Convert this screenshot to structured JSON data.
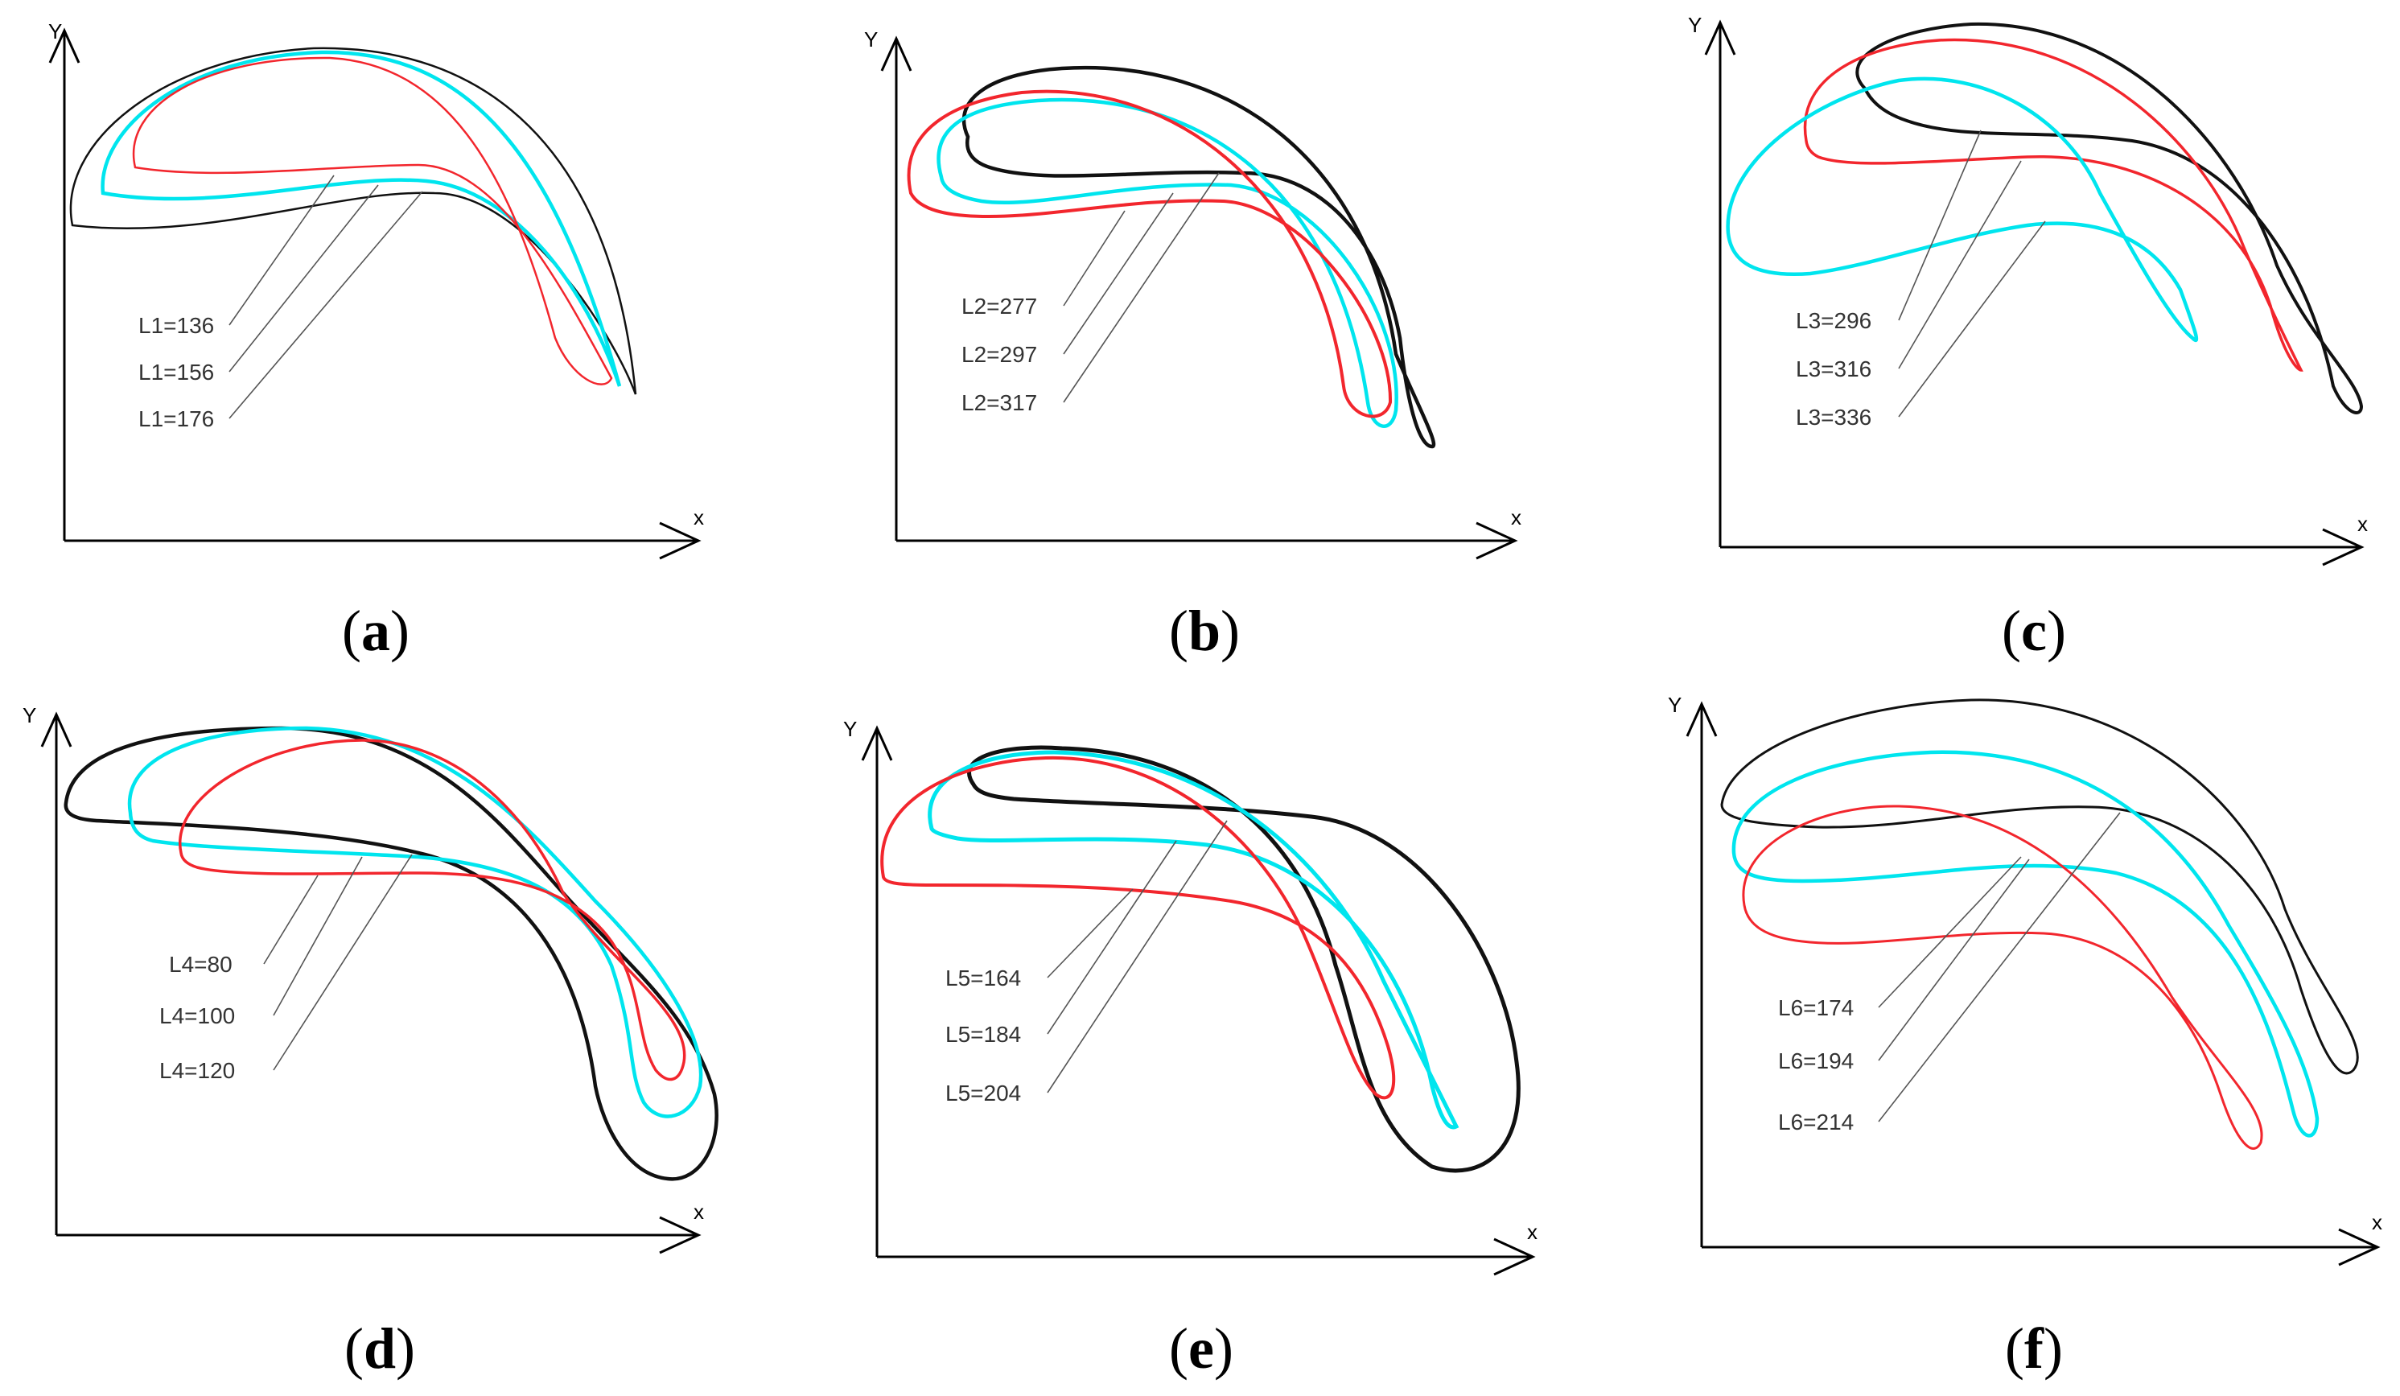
{
  "panels": [
    {
      "id": "a",
      "y_label": "Y",
      "x_label": "x",
      "caption": "a",
      "labels": [
        "L1=136",
        "L1=156",
        "L1=176"
      ]
    },
    {
      "id": "b",
      "y_label": "Y",
      "x_label": "x",
      "caption": "b",
      "labels": [
        "L2=277",
        "L2=297",
        "L2=317"
      ]
    },
    {
      "id": "c",
      "y_label": "Y",
      "x_label": "x",
      "caption": "c",
      "labels": [
        "L3=296",
        "L3=316",
        "L3=336"
      ]
    },
    {
      "id": "d",
      "y_label": "Y",
      "x_label": "x",
      "caption": "d",
      "labels": [
        "L4=80",
        "L4=100",
        "L4=120"
      ]
    },
    {
      "id": "e",
      "y_label": "Y",
      "x_label": "x",
      "caption": "e",
      "labels": [
        "L5=164",
        "L5=184",
        "L5=204"
      ]
    },
    {
      "id": "f",
      "y_label": "Y",
      "x_label": "x",
      "caption": "f",
      "labels": [
        "L6=174",
        "L6=194",
        "L6=214"
      ]
    }
  ],
  "colors": {
    "red": "#f2262d",
    "cyan": "#00e5ee",
    "black": "#111111"
  }
}
